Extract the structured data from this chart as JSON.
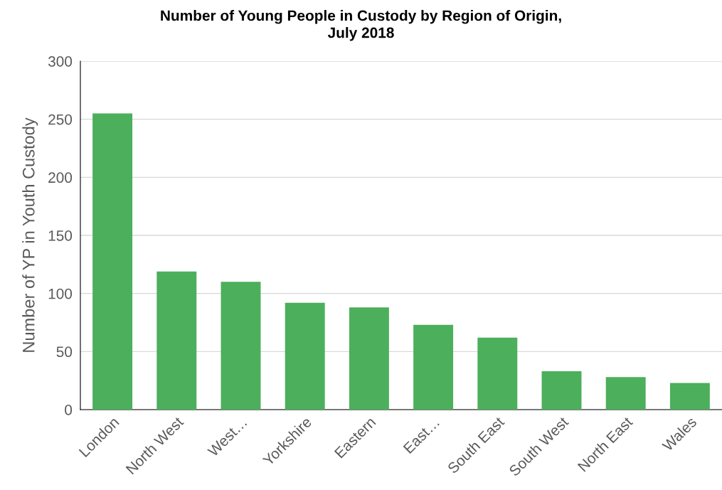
{
  "chart_data": {
    "type": "bar",
    "title": "Number of Young People in Custody by Region of Origin,\nJuly 2018",
    "ylabel": "Number of YP in Youth Custody",
    "categories": [
      "London",
      "North West",
      "West…",
      "Yorkshire",
      "Eastern",
      "East…",
      "South East",
      "South West",
      "North East",
      "Wales"
    ],
    "values": [
      255,
      119,
      110,
      92,
      88,
      73,
      62,
      33,
      28,
      23
    ],
    "color": "#4caf5b",
    "ylim": [
      0,
      300
    ],
    "yticks": [
      0,
      50,
      100,
      150,
      200,
      250,
      300
    ],
    "grid": "y",
    "legend": false
  }
}
